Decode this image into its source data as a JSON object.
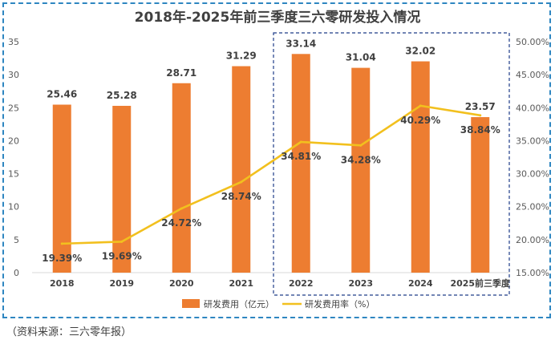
{
  "chart_data": {
    "type": "bar",
    "title": "2018年-2025年前三季度三六零研发投入情况",
    "categories": [
      "2018",
      "2019",
      "2020",
      "2021",
      "2022",
      "2023",
      "2024",
      "2025前三季度"
    ],
    "series": [
      {
        "name": "研发费用（亿元）",
        "type": "bar",
        "axis": "left",
        "color": "#ed7d31",
        "values": [
          25.46,
          25.28,
          28.71,
          31.29,
          33.14,
          31.04,
          32.02,
          23.57
        ],
        "labels": [
          "25.46",
          "25.28",
          "28.71",
          "31.29",
          "33.14",
          "31.04",
          "32.02",
          "23.57"
        ]
      },
      {
        "name": "研发费用率（%）",
        "type": "line",
        "axis": "right",
        "color": "#f2c01e",
        "values": [
          19.39,
          19.69,
          24.72,
          28.74,
          34.81,
          34.28,
          40.29,
          38.84
        ],
        "labels": [
          "19.39%",
          "19.69%",
          "24.72%",
          "28.74%",
          "34.81%",
          "34.28%",
          "40.29%",
          "38.84%"
        ]
      }
    ],
    "y_left": {
      "ylim": [
        0,
        35
      ],
      "ticks": [
        "0",
        "5",
        "10",
        "15",
        "20",
        "25",
        "30",
        "35"
      ]
    },
    "y_right": {
      "ylim": [
        15,
        50
      ],
      "ticks": [
        "15.00%",
        "20.00%",
        "25.00%",
        "30.00%",
        "35.00%",
        "40.00%",
        "45.00%",
        "50.00%"
      ]
    },
    "highlight_range": [
      "2022",
      "2025前三季度"
    ],
    "legend_position": "bottom",
    "grid": false
  },
  "source_note": "（资料来源：三六零年报）"
}
